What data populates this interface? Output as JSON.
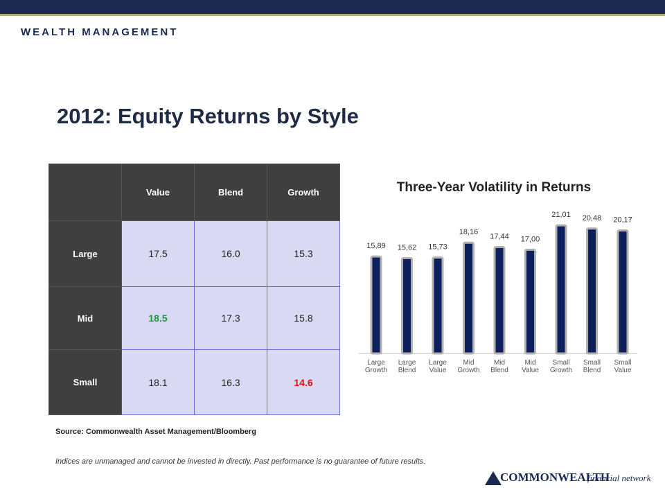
{
  "header": {
    "brand": "WEALTH MANAGEMENT"
  },
  "title": "2012: Equity Returns by Style",
  "table": {
    "columns": [
      "Value",
      "Blend",
      "Growth"
    ],
    "rows": [
      {
        "label": "Large",
        "cells": [
          "17.5",
          "16.0",
          "15.3"
        ]
      },
      {
        "label": "Mid",
        "cells": [
          "18.5",
          "17.3",
          "15.8"
        ]
      },
      {
        "label": "Small",
        "cells": [
          "18.1",
          "16.3",
          "14.6"
        ]
      }
    ]
  },
  "chart_data": {
    "type": "bar",
    "title": "Three-Year Volatility in Returns",
    "categories": [
      "Large Growth",
      "Large Blend",
      "Large Value",
      "Mid Growth",
      "Mid Blend",
      "Mid Value",
      "Small Growth",
      "Small Blend",
      "Small Value"
    ],
    "values": [
      15.89,
      15.62,
      15.73,
      18.16,
      17.44,
      17.0,
      21.01,
      20.48,
      20.17
    ],
    "value_labels": [
      "15,89",
      "15,62",
      "15,73",
      "18,16",
      "17,44",
      "17,00",
      "21,01",
      "20,48",
      "20,17"
    ],
    "color": "#0d1f5c"
  },
  "source": "Source: Commonwealth Asset Management/Bloomberg",
  "disclaimer": "Indices are unmanaged and cannot be invested in directly. Past performance is no guarantee of future results.",
  "footer": {
    "logo": "COMMONWEALTH",
    "tagline": "financial network"
  }
}
